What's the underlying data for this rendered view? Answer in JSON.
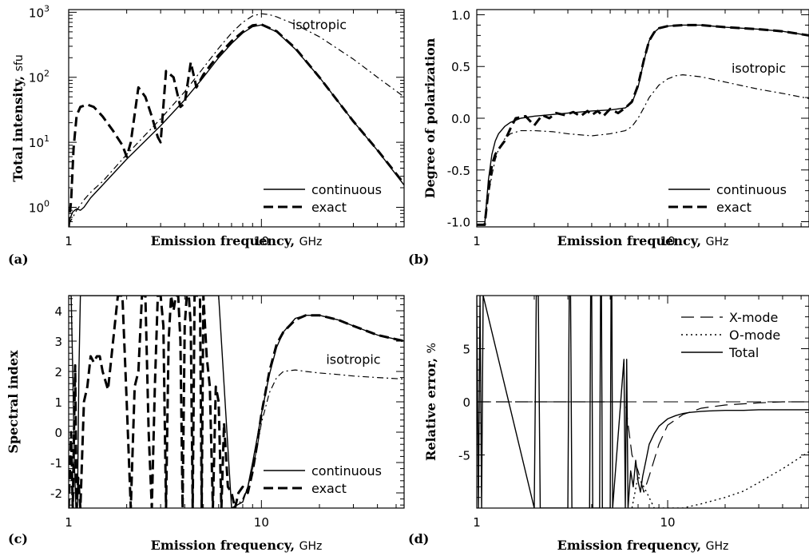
{
  "chart_data": [
    {
      "panel": "(a)",
      "type": "line",
      "xlabel": "Emission frequency,",
      "xunit": "GHz",
      "ylabel": "Total intensity,",
      "yunit": "sfu",
      "xscale": "log",
      "yscale": "log",
      "xlim": [
        1,
        55
      ],
      "ylim": [
        0.5,
        1100
      ],
      "xticks": [
        {
          "v": 1,
          "label": "1"
        },
        {
          "v": 10,
          "label": "10"
        }
      ],
      "yticks": [
        {
          "v": 1,
          "label": "10",
          "exp": "0"
        },
        {
          "v": 10,
          "label": "10",
          "exp": "1"
        },
        {
          "v": 100,
          "label": "10",
          "exp": "2"
        },
        {
          "v": 1000,
          "label": "10",
          "exp": "3"
        }
      ],
      "annotations": [
        {
          "text": "isotropic",
          "x": 20,
          "y": 550
        }
      ],
      "legend": {
        "position": "bottom-right",
        "entries": [
          {
            "label": "continuous",
            "series": "continuous"
          },
          {
            "label": "exact",
            "series": "exact"
          }
        ]
      },
      "series": [
        {
          "name": "continuous",
          "style": "solid",
          "x": [
            1.0,
            1.05,
            1.1,
            1.15,
            1.2,
            1.3,
            1.5,
            2.0,
            3.0,
            4.0,
            5.0,
            6.0,
            7.0,
            8.0,
            9.0,
            10.0,
            12.0,
            15.0,
            20.0,
            30.0,
            40.0,
            55.0
          ],
          "y": [
            0.6,
            0.85,
            0.95,
            0.9,
            1.0,
            1.4,
            2.2,
            5.5,
            18,
            45,
            100,
            200,
            330,
            480,
            600,
            640,
            500,
            270,
            100,
            21,
            7.5,
            2.2
          ]
        },
        {
          "name": "exact",
          "style": "dash",
          "x": [
            1.0,
            1.03,
            1.06,
            1.1,
            1.15,
            1.25,
            1.35,
            1.5,
            1.7,
            1.9,
            2.0,
            2.1,
            2.3,
            2.5,
            2.7,
            2.9,
            3.0,
            3.2,
            3.5,
            3.8,
            4.0,
            4.3,
            4.6,
            5.0,
            5.5,
            6.0,
            7.0,
            8.0,
            9.0,
            10.0,
            12.0,
            15.0,
            20.0,
            30.0,
            40.0,
            55.0
          ],
          "y": [
            0.5,
            1.3,
            8,
            26,
            35,
            38,
            35,
            25,
            15,
            9,
            6,
            10,
            70,
            50,
            25,
            12,
            10,
            125,
            100,
            35,
            40,
            170,
            70,
            110,
            160,
            220,
            360,
            500,
            630,
            650,
            510,
            280,
            100,
            21,
            7.6,
            2.3
          ]
        },
        {
          "name": "isotropic",
          "style": "dashdot",
          "x": [
            1.0,
            1.05,
            1.1,
            1.2,
            1.3,
            1.5,
            2.0,
            3.0,
            4.0,
            5.0,
            6.0,
            7.0,
            8.0,
            9.0,
            10.0,
            11.0,
            12.0,
            15.0,
            20.0,
            30.0,
            40.0,
            55.0
          ],
          "y": [
            0.55,
            0.7,
            0.9,
            1.3,
            1.7,
            2.5,
            6.5,
            23,
            60,
            140,
            280,
            480,
            700,
            880,
            950,
            920,
            850,
            650,
            420,
            190,
            100,
            50
          ]
        }
      ]
    },
    {
      "panel": "(b)",
      "type": "line",
      "xlabel": "Emission frequency,",
      "xunit": "GHz",
      "ylabel": "Degree of polarization",
      "xscale": "log",
      "yscale": "linear",
      "xlim": [
        1,
        55
      ],
      "ylim": [
        -1.05,
        1.05
      ],
      "xticks": [
        {
          "v": 1,
          "label": "1"
        },
        {
          "v": 10,
          "label": "10"
        }
      ],
      "yticks": [
        {
          "v": -1.0,
          "label": "-1.0"
        },
        {
          "v": -0.5,
          "label": "-0.5"
        },
        {
          "v": 0.0,
          "label": "0.0"
        },
        {
          "v": 0.5,
          "label": "0.5"
        },
        {
          "v": 1.0,
          "label": "1.0"
        }
      ],
      "annotations": [
        {
          "text": "isotropic",
          "x": 30,
          "y": 0.44
        }
      ],
      "legend": {
        "position": "bottom-right",
        "entries": [
          {
            "label": "continuous",
            "series": "continuous"
          },
          {
            "label": "exact",
            "series": "exact"
          }
        ]
      },
      "series": [
        {
          "name": "continuous",
          "style": "solid",
          "x": [
            1.0,
            1.1,
            1.15,
            1.2,
            1.25,
            1.3,
            1.4,
            1.5,
            1.7,
            2.0,
            3.0,
            4.0,
            5.0,
            6.0,
            6.5,
            7.0,
            7.5,
            8.0,
            8.5,
            9.0,
            10.0,
            12.0,
            15.0,
            20.0,
            30.0,
            40.0,
            55.0
          ],
          "y": [
            -1.03,
            -1.03,
            -0.6,
            -0.35,
            -0.22,
            -0.15,
            -0.08,
            -0.04,
            0.0,
            0.02,
            0.05,
            0.07,
            0.08,
            0.1,
            0.15,
            0.3,
            0.55,
            0.75,
            0.83,
            0.87,
            0.89,
            0.9,
            0.9,
            0.88,
            0.86,
            0.84,
            0.8
          ]
        },
        {
          "name": "exact",
          "style": "dash",
          "x": [
            1.0,
            1.1,
            1.15,
            1.2,
            1.25,
            1.3,
            1.4,
            1.5,
            1.6,
            1.8,
            2.0,
            2.2,
            2.4,
            2.6,
            2.9,
            3.2,
            3.5,
            3.8,
            4.0,
            4.3,
            4.6,
            5.0,
            5.5,
            6.0,
            6.5,
            7.0,
            7.5,
            8.0,
            8.5,
            9.0,
            10.0,
            12.0,
            15.0,
            20.0,
            30.0,
            40.0,
            55.0
          ],
          "y": [
            -1.03,
            -1.03,
            -0.7,
            -0.45,
            -0.35,
            -0.3,
            -0.22,
            -0.1,
            0.0,
            0.02,
            -0.07,
            0.03,
            0.0,
            0.05,
            0.03,
            0.06,
            0.02,
            0.07,
            0.03,
            0.07,
            0.02,
            0.09,
            0.05,
            0.1,
            0.16,
            0.32,
            0.56,
            0.75,
            0.83,
            0.87,
            0.89,
            0.9,
            0.9,
            0.88,
            0.86,
            0.84,
            0.8
          ]
        },
        {
          "name": "isotropic",
          "style": "dashdot",
          "x": [
            1.0,
            1.1,
            1.15,
            1.2,
            1.25,
            1.3,
            1.4,
            1.5,
            1.7,
            2.0,
            2.5,
            3.0,
            4.0,
            5.0,
            6.0,
            6.5,
            7.0,
            7.5,
            8.0,
            9.0,
            10.0,
            11.0,
            12.0,
            15.0,
            20.0,
            30.0,
            40.0,
            55.0
          ],
          "y": [
            -1.03,
            -1.03,
            -0.75,
            -0.55,
            -0.4,
            -0.3,
            -0.2,
            -0.15,
            -0.12,
            -0.12,
            -0.13,
            -0.15,
            -0.17,
            -0.15,
            -0.12,
            -0.08,
            0.0,
            0.1,
            0.2,
            0.32,
            0.38,
            0.41,
            0.42,
            0.4,
            0.35,
            0.28,
            0.24,
            0.19
          ]
        }
      ]
    },
    {
      "panel": "(c)",
      "type": "line",
      "xlabel": "Emission frequency,",
      "xunit": "GHz",
      "ylabel": "Spectral index",
      "xscale": "log",
      "yscale": "linear",
      "xlim": [
        1,
        55
      ],
      "ylim": [
        -2.5,
        4.5
      ],
      "xticks": [
        {
          "v": 1,
          "label": "1"
        },
        {
          "v": 10,
          "label": "10"
        }
      ],
      "yticks": [
        {
          "v": -2,
          "label": "-2"
        },
        {
          "v": -1,
          "label": "-1"
        },
        {
          "v": 0,
          "label": "0"
        },
        {
          "v": 1,
          "label": "1"
        },
        {
          "v": 2,
          "label": "2"
        },
        {
          "v": 3,
          "label": "3"
        },
        {
          "v": 4,
          "label": "4"
        }
      ],
      "annotations": [
        {
          "text": "isotropic",
          "x": 30,
          "y": 2.25
        }
      ],
      "legend": {
        "position": "bottom-right",
        "entries": [
          {
            "label": "continuous",
            "series": "continuous"
          },
          {
            "label": "exact",
            "series": "exact"
          }
        ]
      },
      "series": [
        {
          "name": "continuous",
          "style": "solid",
          "x": [
            1.0,
            1.03,
            1.05,
            1.07,
            1.09,
            1.11,
            1.13,
            1.15,
            1.2,
            1.3,
            1.5,
            2.0,
            3.0,
            4.0,
            5.0,
            6.0,
            7.0,
            8.0,
            8.5,
            9.0,
            9.5,
            10.0,
            11.0,
            12.0,
            13.0,
            15.0,
            17.0,
            20.0,
            25.0,
            30.0,
            40.0,
            55.0
          ],
          "y": [
            4.5,
            4.5,
            2.0,
            -1.0,
            -2.5,
            -2.5,
            2.0,
            4.5,
            4.5,
            4.5,
            4.5,
            4.5,
            4.5,
            4.5,
            4.5,
            4.5,
            -2.5,
            -2.3,
            -1.8,
            -1.0,
            -0.2,
            0.6,
            1.9,
            2.8,
            3.3,
            3.75,
            3.85,
            3.85,
            3.7,
            3.5,
            3.2,
            3.0
          ]
        },
        {
          "name": "exact",
          "style": "dash",
          "x": [
            1.0,
            1.03,
            1.05,
            1.08,
            1.1,
            1.12,
            1.15,
            1.2,
            1.25,
            1.3,
            1.35,
            1.4,
            1.45,
            1.5,
            1.6,
            1.7,
            1.8,
            1.9,
            2.0,
            2.1,
            2.2,
            2.3,
            2.4,
            2.5,
            2.6,
            2.7,
            2.8,
            2.9,
            3.0,
            3.1,
            3.2,
            3.3,
            3.4,
            3.5,
            3.6,
            3.7,
            3.8,
            3.9,
            4.0,
            4.1,
            4.2,
            4.3,
            4.4,
            4.5,
            4.6,
            4.7,
            4.8,
            4.9,
            5.0,
            5.2,
            5.4,
            5.6,
            5.8,
            6.0,
            6.2,
            6.4,
            6.7,
            7.0,
            7.3,
            7.6,
            8.0,
            8.5,
            9.0,
            9.5,
            10.0,
            11.0,
            12.0,
            13.0,
            15.0,
            17.0,
            20.0,
            25.0,
            30.0,
            40.0,
            55.0
          ],
          "y": [
            -2.5,
            0.0,
            -2.5,
            2.2,
            -2.5,
            -1.5,
            -2.5,
            1.0,
            1.5,
            2.5,
            2.3,
            2.5,
            2.5,
            2.0,
            1.4,
            3.0,
            4.5,
            4.5,
            1.0,
            -2.5,
            1.5,
            2.0,
            4.5,
            4.5,
            0.0,
            -2.5,
            1.5,
            4.5,
            4.5,
            3.5,
            -2.5,
            3.0,
            4.5,
            4.0,
            4.5,
            4.5,
            3.0,
            -2.5,
            3.5,
            4.5,
            4.5,
            3.5,
            -2.5,
            4.5,
            4.5,
            4.5,
            4.5,
            -2.5,
            4.5,
            2.5,
            1.5,
            -2.5,
            1.5,
            1.0,
            -2.5,
            0.3,
            -1.8,
            -2.0,
            -2.5,
            -2.0,
            -1.8,
            -2.0,
            -1.3,
            -0.4,
            0.6,
            2.0,
            2.9,
            3.3,
            3.7,
            3.85,
            3.85,
            3.7,
            3.5,
            3.2,
            3.0
          ]
        },
        {
          "name": "isotropic",
          "style": "dashdot",
          "x": [
            7.0,
            7.5,
            8.0,
            8.5,
            9.0,
            9.5,
            10.0,
            11.0,
            12.0,
            13.0,
            15.0,
            17.0,
            20.0,
            25.0,
            30.0,
            40.0,
            55.0
          ],
          "y": [
            -2.5,
            -2.4,
            -2.2,
            -1.8,
            -1.2,
            -0.5,
            0.3,
            1.3,
            1.8,
            2.0,
            2.05,
            2.0,
            1.95,
            1.9,
            1.85,
            1.8,
            1.75
          ]
        }
      ]
    },
    {
      "panel": "(d)",
      "type": "line",
      "xlabel": "Emission frequency,",
      "xunit": "GHz",
      "ylabel": "Relative error,",
      "yunit": "%",
      "xscale": "log",
      "yscale": "linear",
      "xlim": [
        1,
        55
      ],
      "ylim": [
        -10,
        10
      ],
      "xticks": [
        {
          "v": 1,
          "label": "1"
        },
        {
          "v": 10,
          "label": "10"
        }
      ],
      "yticks": [
        {
          "v": -5,
          "label": "-5"
        },
        {
          "v": 0,
          "label": "0"
        },
        {
          "v": 5,
          "label": "5"
        }
      ],
      "legend": {
        "position": "top-right",
        "entries": [
          {
            "label": "X-mode",
            "series": "X-mode"
          },
          {
            "label": "O-mode",
            "series": "O-mode"
          },
          {
            "label": "Total",
            "series": "Total"
          }
        ]
      },
      "zero_line": true,
      "series": [
        {
          "name": "X-mode",
          "style": "longdash",
          "x": [
            1.0,
            6.0,
            6.5,
            7.0,
            7.5,
            8.0,
            9.0,
            10.0,
            12.0,
            15.0,
            20.0,
            30.0,
            40.0,
            55.0
          ],
          "y": [
            0.0,
            0.0,
            -5.0,
            -6.5,
            -8.5,
            -7.0,
            -4.0,
            -2.2,
            -1.2,
            -0.6,
            -0.3,
            -0.1,
            0.0,
            0.0
          ]
        },
        {
          "name": "O-mode",
          "style": "dot",
          "x": [
            6.5,
            7.0,
            7.5,
            8.0,
            8.5,
            9.0,
            10.0,
            12.0,
            15.0,
            20.0,
            25.0,
            30.0,
            40.0,
            55.0
          ],
          "y": [
            -10.0,
            -7.0,
            -8.0,
            -9.0,
            -10.0,
            -10.0,
            -10.0,
            -10.0,
            -9.6,
            -9.0,
            -8.4,
            -7.6,
            -6.3,
            -4.7
          ]
        },
        {
          "name": "Total",
          "style": "solid",
          "x": [
            1.0,
            1.02,
            1.04,
            1.06,
            1.08,
            2.0,
            2.05,
            2.1,
            2.15,
            3.0,
            3.05,
            3.1,
            3.15,
            3.9,
            3.95,
            4.0,
            4.05,
            4.4,
            4.45,
            4.5,
            4.55,
            5.0,
            5.05,
            5.1,
            5.15,
            5.9,
            6.0,
            6.1,
            6.2,
            6.4,
            6.6,
            6.8,
            7.0,
            7.2,
            7.4,
            7.7,
            8.0,
            8.5,
            9.0,
            10.0,
            11.0,
            12.0,
            13.0,
            15.0,
            17.0,
            20.0,
            25.0,
            30.0,
            40.0,
            55.0
          ],
          "y": [
            10.0,
            -10.0,
            10.0,
            -10.0,
            10.0,
            -10.0,
            10.0,
            10.0,
            -10.0,
            -10.0,
            10.0,
            10.0,
            -10.0,
            -10.0,
            10.0,
            10.0,
            -10.0,
            -10.0,
            10.0,
            10.0,
            -10.0,
            -10.0,
            10.0,
            10.0,
            -10.0,
            4.0,
            -10.0,
            4.0,
            -10.0,
            -6.5,
            -8.0,
            -5.5,
            -7.5,
            -8.5,
            -7.0,
            -5.5,
            -4.0,
            -3.0,
            -2.3,
            -1.6,
            -1.3,
            -1.1,
            -1.0,
            -0.9,
            -0.85,
            -0.8,
            -0.8,
            -0.75,
            -0.75,
            -0.75
          ]
        }
      ]
    }
  ]
}
